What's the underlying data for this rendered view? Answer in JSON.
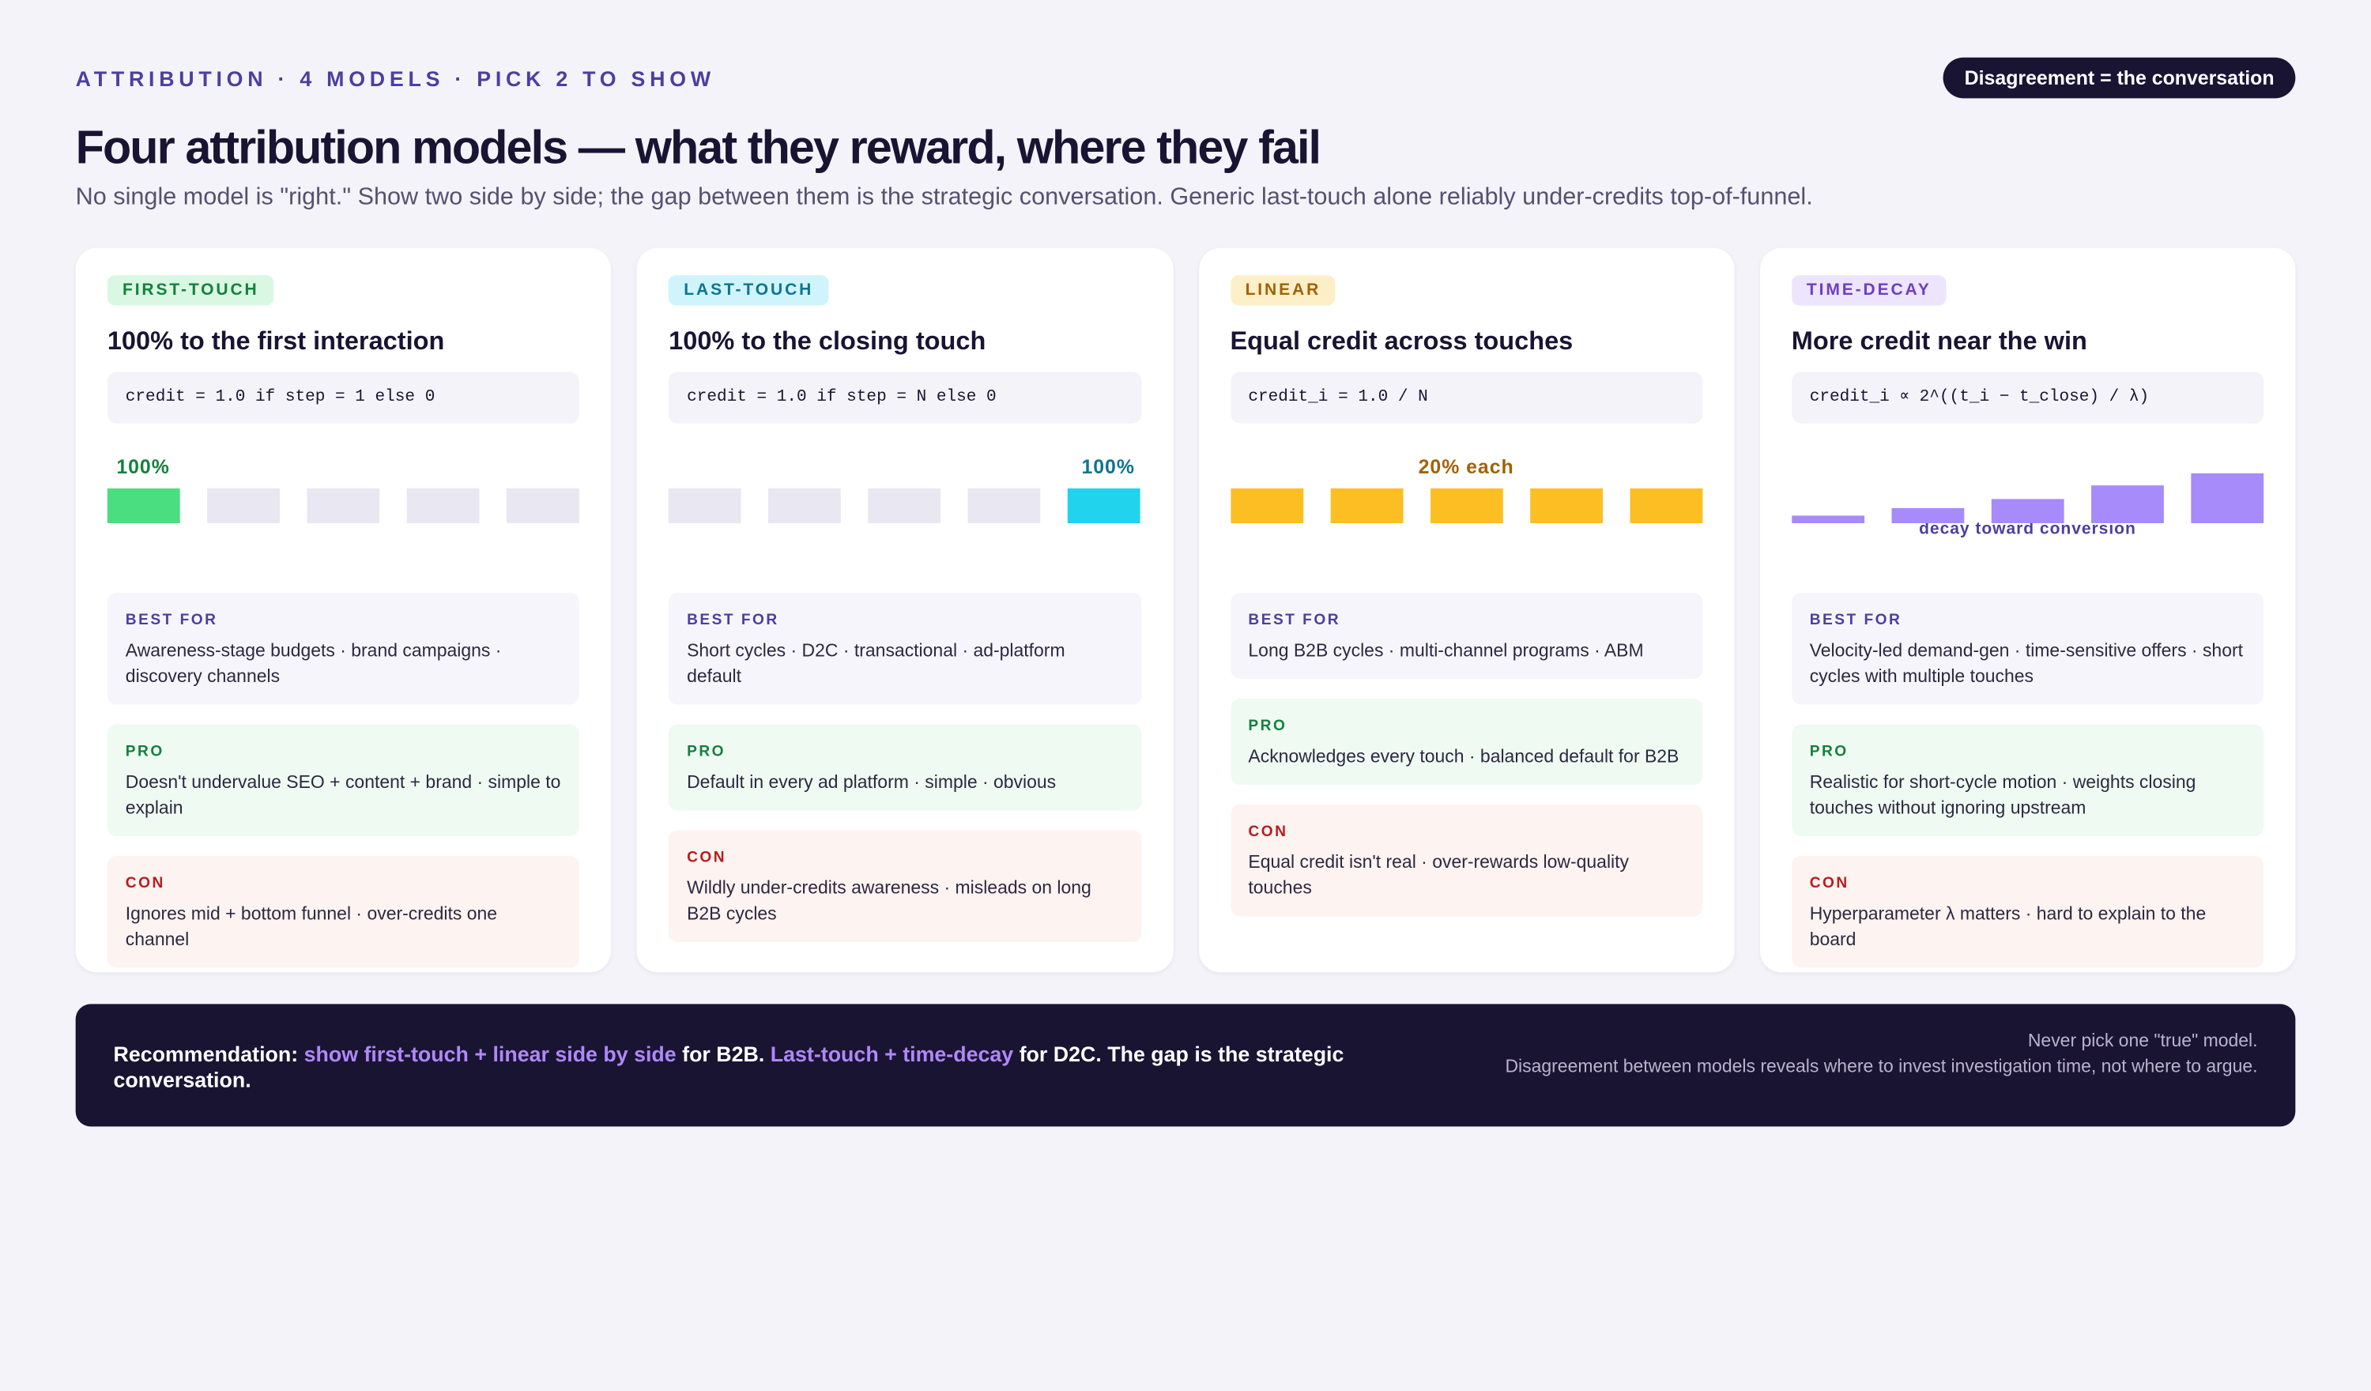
{
  "header": {
    "eyebrow": "ATTRIBUTION · 4 MODELS · PICK 2 TO SHOW",
    "badge": "Disagreement = the conversation",
    "title": "Four attribution models — what they reward, where they fail",
    "subtitle": "No single model is \"right.\" Show two side by side; the gap between them is the strategic conversation. Generic last-touch alone reliably under-credits top-of-funnel."
  },
  "labels": {
    "best_for": "BEST FOR",
    "pro": "PRO",
    "con": "CON"
  },
  "cards": [
    {
      "tag": "FIRST-TOUCH",
      "title": "100% to the first interaction",
      "formula": "credit = 1.0 if step = 1 else 0",
      "bar_label": "100%",
      "best_for": "Awareness-stage budgets · brand campaigns · discovery channels",
      "pro": "Doesn't undervalue SEO + content + brand · simple to explain",
      "con": "Ignores mid + bottom funnel · over-credits one channel"
    },
    {
      "tag": "LAST-TOUCH",
      "title": "100% to the closing touch",
      "formula": "credit = 1.0 if step = N else 0",
      "bar_label": "100%",
      "best_for": "Short cycles · D2C · transactional · ad-platform default",
      "pro": "Default in every ad platform · simple · obvious",
      "con": "Wildly under-credits awareness · misleads on long B2B cycles"
    },
    {
      "tag": "LINEAR",
      "title": "Equal credit across touches",
      "formula": "credit_i = 1.0 / N",
      "bar_label": "20% each",
      "best_for": "Long B2B cycles · multi-channel programs · ABM",
      "pro": "Acknowledges every touch · balanced default for B2B",
      "con": "Equal credit isn't real · over-rewards low-quality touches"
    },
    {
      "tag": "TIME-DECAY",
      "title": "More credit near the win",
      "formula": "credit_i ∝ 2^((t_i − t_close) / λ)",
      "bar_label": "decay toward conversion",
      "best_for": "Velocity-led demand-gen · time-sensitive offers · short cycles with multiple touches",
      "pro": "Realistic for short-cycle motion · weights closing touches without ignoring upstream",
      "con": "Hyperparameter λ matters · hard to explain to the board"
    }
  ],
  "recommendation": {
    "parts": [
      "Recommendation: ",
      "show first-touch + linear side by side",
      " for B2B. ",
      "Last-touch + time-decay",
      " for D2C. The gap is the strategic conversation."
    ],
    "note": [
      "Never pick one \"true\" model.",
      "Disagreement between models reveals where to invest investigation time, not where to argue."
    ]
  }
}
